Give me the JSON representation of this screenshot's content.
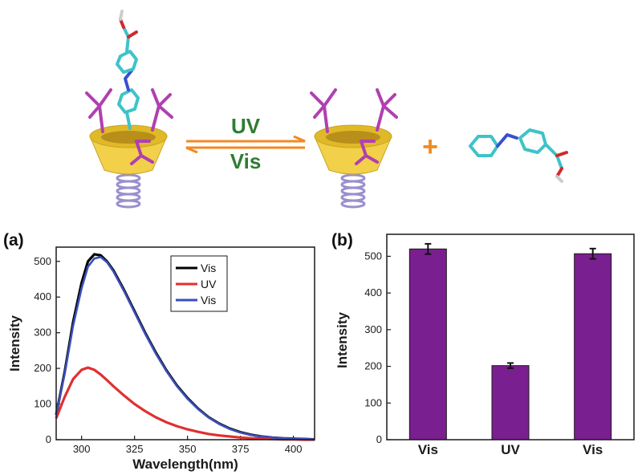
{
  "scheme": {
    "arrow_forward_label": "UV",
    "arrow_back_label": "Vis",
    "plus_sign": "+",
    "colors": {
      "arrow": "#f08a24",
      "arrow_text": "#2e7d32",
      "bowl": "#f2d04a",
      "bowl_inner": "#e0b928",
      "spring": "#9a8fcf",
      "carbon": "#3ec3c9",
      "nitrogen": "#3a4fd0",
      "oxygen": "#d02a2a",
      "arm": "#b040b0"
    }
  },
  "chart_data": [
    {
      "panel_label": "(a)",
      "type": "line",
      "xlabel": "Wavelength(nm)",
      "ylabel": "Intensity",
      "xlim": [
        288,
        410
      ],
      "ylim": [
        0,
        540
      ],
      "xticks": [
        300,
        325,
        350,
        375,
        400
      ],
      "yticks": [
        0,
        100,
        200,
        300,
        400,
        500
      ],
      "legend_placement": "top-right",
      "series": [
        {
          "name": "Vis",
          "color": "#000000",
          "x": [
            288,
            292,
            296,
            300,
            303,
            306,
            309,
            312,
            315,
            320,
            325,
            330,
            335,
            340,
            345,
            350,
            355,
            360,
            365,
            370,
            375,
            380,
            385,
            390,
            395,
            400,
            405,
            410
          ],
          "y": [
            70,
            190,
            330,
            440,
            500,
            520,
            517,
            500,
            475,
            420,
            360,
            300,
            245,
            195,
            152,
            117,
            87,
            63,
            45,
            31,
            21,
            14,
            9,
            6,
            4,
            3,
            2,
            1
          ]
        },
        {
          "name": "UV",
          "color": "#e03030",
          "x": [
            288,
            292,
            296,
            300,
            303,
            306,
            309,
            312,
            315,
            320,
            325,
            330,
            335,
            340,
            345,
            350,
            355,
            360,
            365,
            370,
            375,
            380,
            385,
            390,
            395,
            400,
            405,
            410
          ],
          "y": [
            60,
            120,
            170,
            196,
            202,
            196,
            183,
            167,
            150,
            124,
            100,
            80,
            63,
            49,
            38,
            29,
            22,
            16,
            12,
            9,
            6,
            4,
            3,
            2,
            1,
            1,
            0,
            0
          ]
        },
        {
          "name": "Vis",
          "color": "#3a4fb8",
          "x": [
            288,
            292,
            296,
            300,
            303,
            306,
            309,
            312,
            315,
            320,
            325,
            330,
            335,
            340,
            345,
            350,
            355,
            360,
            365,
            370,
            375,
            380,
            385,
            390,
            395,
            400,
            405,
            410
          ],
          "y": [
            70,
            185,
            320,
            425,
            485,
            508,
            512,
            498,
            472,
            417,
            357,
            297,
            242,
            193,
            150,
            115,
            86,
            62,
            44,
            30,
            20,
            13,
            9,
            6,
            4,
            3,
            2,
            1
          ]
        }
      ]
    },
    {
      "panel_label": "(b)",
      "type": "bar",
      "ylabel": "Intensity",
      "xlabel": "",
      "ylim": [
        0,
        560
      ],
      "yticks": [
        0,
        100,
        200,
        300,
        400,
        500
      ],
      "categories": [
        "Vis",
        "UV",
        "Vis"
      ],
      "values": [
        520,
        202,
        507
      ],
      "errors": [
        14,
        7,
        14
      ],
      "bar_color": "#7a1f8f"
    }
  ]
}
